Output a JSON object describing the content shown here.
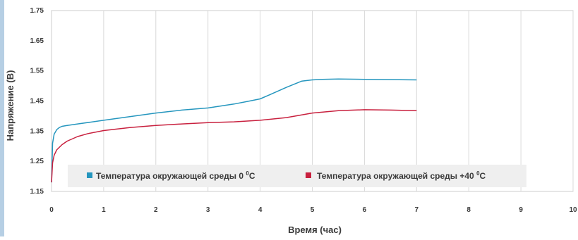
{
  "chart_data": {
    "type": "line",
    "title": "",
    "xlabel": "Время (час)",
    "ylabel": "Напряжение (В)",
    "xlim": [
      0,
      10
    ],
    "ylim": [
      1.15,
      1.75
    ],
    "x_ticks": [
      "0",
      "1",
      "2",
      "3",
      "4",
      "5",
      "6",
      "7",
      "8",
      "9",
      "10"
    ],
    "y_ticks": [
      "1.15",
      "1.25",
      "1.35",
      "1.45",
      "1.55",
      "1.65",
      "1.75"
    ],
    "grid": "vertical",
    "legend_position": "bottom-inside",
    "series": [
      {
        "name": "Температура окружающей среды  0 ",
        "superscript": "0",
        "suffix": "C",
        "color": "#2596be",
        "x": [
          0.0,
          0.02,
          0.05,
          0.1,
          0.15,
          0.2,
          0.3,
          0.5,
          1.0,
          1.5,
          2.0,
          2.5,
          3.0,
          3.5,
          3.8,
          4.0,
          4.2,
          4.5,
          4.8,
          5.0,
          5.2,
          5.5,
          6.0,
          6.5,
          7.0
        ],
        "y": [
          1.18,
          1.31,
          1.34,
          1.355,
          1.362,
          1.366,
          1.369,
          1.374,
          1.386,
          1.398,
          1.41,
          1.42,
          1.427,
          1.44,
          1.45,
          1.457,
          1.472,
          1.495,
          1.516,
          1.52,
          1.522,
          1.523,
          1.522,
          1.521,
          1.52
        ]
      },
      {
        "name": "Температура окружающей среды  +40 ",
        "superscript": "0",
        "suffix": "C",
        "color": "#c8203e",
        "x": [
          0.0,
          0.02,
          0.05,
          0.1,
          0.2,
          0.3,
          0.5,
          0.7,
          1.0,
          1.5,
          2.0,
          2.5,
          3.0,
          3.5,
          4.0,
          4.5,
          5.0,
          5.5,
          6.0,
          6.5,
          7.0
        ],
        "y": [
          1.18,
          1.245,
          1.27,
          1.288,
          1.305,
          1.317,
          1.332,
          1.342,
          1.352,
          1.362,
          1.369,
          1.374,
          1.378,
          1.381,
          1.386,
          1.395,
          1.41,
          1.418,
          1.421,
          1.42,
          1.418
        ]
      }
    ]
  }
}
